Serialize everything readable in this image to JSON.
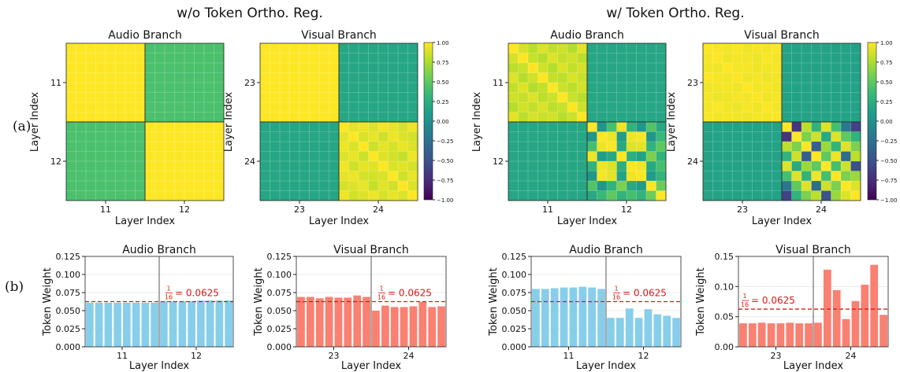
{
  "figure": {
    "left_heading": "w/o Token Ortho. Reg.",
    "right_heading": "w/ Token Ortho. Reg.",
    "row_a_label": "(a)",
    "row_b_label": "(b)"
  },
  "colors": {
    "bar_audio": "#87ceeb",
    "bar_visual": "#fa8072",
    "ref_line": "#e01818"
  },
  "chart_data": [
    {
      "id": "hm-a-wo",
      "type": "heatmap",
      "group": "without-reg",
      "title": "Audio Branch",
      "xlabel": "Layer Index",
      "ylabel": "Layer Index",
      "tick_labels": [
        "11",
        "12"
      ],
      "n": 16,
      "values": [
        1.0,
        0.42,
        1.0
      ],
      "colorbar": false
    },
    {
      "id": "hm-v-wo",
      "type": "heatmap",
      "group": "without-reg",
      "title": "Visual Branch",
      "xlabel": "Layer Index",
      "ylabel": "Layer Index",
      "tick_labels": [
        "23",
        "24"
      ],
      "n": 16,
      "values": [
        1.0,
        0.18,
        [
          [
            1.0,
            0.92,
            0.95,
            0.9,
            0.97,
            0.93,
            0.88,
            0.96
          ],
          [
            0.92,
            1.0,
            0.89,
            0.94,
            0.86,
            0.95,
            0.91,
            0.87
          ],
          [
            0.95,
            0.89,
            1.0,
            0.85,
            0.93,
            0.88,
            0.94,
            0.9
          ],
          [
            0.9,
            0.94,
            0.85,
            1.0,
            0.91,
            0.87,
            0.83,
            0.95
          ],
          [
            0.97,
            0.86,
            0.93,
            0.91,
            1.0,
            0.89,
            0.92,
            0.88
          ],
          [
            0.93,
            0.95,
            0.88,
            0.87,
            0.89,
            1.0,
            0.86,
            0.94
          ],
          [
            0.88,
            0.91,
            0.94,
            0.83,
            0.92,
            0.86,
            1.0,
            0.9
          ],
          [
            0.96,
            0.87,
            0.9,
            0.95,
            0.88,
            0.94,
            0.9,
            1.0
          ]
        ]
      ],
      "colorbar": true,
      "colorbar_ticks": [
        "1.00",
        "0.75",
        "0.50",
        "0.25",
        "0.00",
        "−0.25",
        "−0.50",
        "−0.75",
        "−1.00"
      ]
    },
    {
      "id": "hm-a-w",
      "type": "heatmap",
      "group": "with-reg",
      "title": "Audio Branch",
      "xlabel": "Layer Index",
      "ylabel": "Layer Index",
      "tick_labels": [
        "11",
        "12"
      ],
      "n": 16,
      "values": [
        [
          [
            1.0,
            0.88,
            0.8,
            0.9,
            0.82,
            0.86,
            0.78,
            0.92
          ],
          [
            0.88,
            1.0,
            0.84,
            0.79,
            0.91,
            0.83,
            0.87,
            0.8
          ],
          [
            0.8,
            0.84,
            1.0,
            0.86,
            0.78,
            0.9,
            0.82,
            0.88
          ],
          [
            0.9,
            0.79,
            0.86,
            1.0,
            0.83,
            0.8,
            0.89,
            0.84
          ],
          [
            0.82,
            0.91,
            0.78,
            0.83,
            1.0,
            0.85,
            0.8,
            0.87
          ],
          [
            0.86,
            0.83,
            0.9,
            0.8,
            0.85,
            1.0,
            0.84,
            0.79
          ],
          [
            0.78,
            0.87,
            0.82,
            0.89,
            0.8,
            0.84,
            1.0,
            0.85
          ],
          [
            0.92,
            0.8,
            0.88,
            0.84,
            0.87,
            0.79,
            0.85,
            1.0
          ]
        ],
        0.18,
        [
          [
            1.0,
            0.05,
            0.4,
            0.95,
            0.3,
            0.05,
            0.45,
            0.2
          ],
          [
            0.05,
            1.0,
            0.95,
            0.1,
            0.95,
            0.98,
            0.05,
            0.35
          ],
          [
            0.4,
            0.95,
            1.0,
            0.2,
            0.9,
            0.92,
            0.3,
            0.5
          ],
          [
            0.95,
            0.1,
            0.2,
            1.0,
            0.25,
            0.15,
            0.6,
            0.3
          ],
          [
            0.3,
            0.95,
            0.9,
            0.25,
            1.0,
            0.96,
            0.2,
            0.4
          ],
          [
            0.05,
            0.98,
            0.92,
            0.15,
            0.96,
            1.0,
            0.1,
            0.3
          ],
          [
            0.45,
            0.05,
            0.3,
            0.6,
            0.2,
            0.1,
            1.0,
            0.55
          ],
          [
            0.2,
            0.35,
            0.5,
            0.3,
            0.4,
            0.3,
            0.55,
            1.0
          ]
        ]
      ],
      "colorbar": false
    },
    {
      "id": "hm-v-w",
      "type": "heatmap",
      "group": "with-reg",
      "title": "Visual Branch",
      "xlabel": "Layer Index",
      "ylabel": "Layer Index",
      "tick_labels": [
        "23",
        "24"
      ],
      "n": 16,
      "values": [
        [
          [
            1.0,
            0.98,
            0.97,
            0.99,
            0.96,
            0.98,
            0.97,
            0.99
          ],
          [
            0.98,
            1.0,
            0.96,
            0.98,
            0.97,
            0.95,
            0.99,
            0.97
          ],
          [
            0.97,
            0.96,
            1.0,
            0.97,
            0.98,
            0.96,
            0.97,
            0.98
          ],
          [
            0.99,
            0.98,
            0.97,
            1.0,
            0.96,
            0.98,
            0.95,
            0.97
          ],
          [
            0.96,
            0.97,
            0.98,
            0.96,
            1.0,
            0.97,
            0.98,
            0.96
          ],
          [
            0.98,
            0.95,
            0.96,
            0.98,
            0.97,
            1.0,
            0.96,
            0.98
          ],
          [
            0.97,
            0.99,
            0.97,
            0.95,
            0.98,
            0.96,
            1.0,
            0.97
          ],
          [
            0.99,
            0.97,
            0.98,
            0.97,
            0.96,
            0.98,
            0.97,
            1.0
          ]
        ],
        0.15,
        [
          [
            1.0,
            -0.7,
            0.8,
            0.3,
            0.9,
            0.4,
            -0.2,
            -0.6
          ],
          [
            -0.7,
            1.0,
            0.6,
            0.85,
            0.2,
            0.9,
            0.5,
            0.3
          ],
          [
            0.8,
            0.6,
            1.0,
            -0.4,
            0.7,
            0.3,
            0.9,
            0.6
          ],
          [
            0.3,
            0.85,
            -0.4,
            1.0,
            0.5,
            0.95,
            -0.3,
            0.8
          ],
          [
            0.9,
            0.2,
            0.7,
            0.5,
            1.0,
            0.4,
            0.85,
            -0.5
          ],
          [
            0.4,
            0.9,
            0.3,
            0.95,
            0.4,
            1.0,
            0.6,
            0.7
          ],
          [
            -0.2,
            0.5,
            0.9,
            -0.3,
            0.85,
            0.6,
            1.0,
            0.9
          ],
          [
            -0.6,
            0.3,
            0.6,
            0.8,
            -0.5,
            0.7,
            0.9,
            1.0
          ]
        ]
      ],
      "colorbar": true,
      "colorbar_ticks": [
        "1.00",
        "0.75",
        "0.50",
        "0.25",
        "0.00",
        "−0.25",
        "−0.50",
        "−0.75",
        "−1.00"
      ]
    },
    {
      "id": "bar-a-wo",
      "type": "bar",
      "group": "without-reg",
      "title": "Audio Branch",
      "xlabel": "Layer Index",
      "ylabel": "Token Weight",
      "color": "audio",
      "ylim": [
        0,
        0.125
      ],
      "yticks": [
        "0.000",
        "0.025",
        "0.050",
        "0.075",
        "0.100",
        "0.125"
      ],
      "layer_labels": [
        "11",
        "12"
      ],
      "values": [
        0.061,
        0.061,
        0.061,
        0.061,
        0.061,
        0.061,
        0.061,
        0.061,
        0.063,
        0.063,
        0.063,
        0.063,
        0.064,
        0.064,
        0.064,
        0.064
      ],
      "reference": 0.0625,
      "ref_num": "1",
      "ref_den": "16",
      "ref_text": "= 0.0625",
      "ref_label_pos": "right"
    },
    {
      "id": "bar-v-wo",
      "type": "bar",
      "group": "without-reg",
      "title": "Visual Branch",
      "xlabel": "Layer Index",
      "ylabel": "Token Weight",
      "color": "visual",
      "ylim": [
        0,
        0.125
      ],
      "yticks": [
        "0.000",
        "0.025",
        "0.050",
        "0.075",
        "0.100",
        "0.125"
      ],
      "layer_labels": [
        "23",
        "24"
      ],
      "values": [
        0.069,
        0.069,
        0.067,
        0.069,
        0.068,
        0.068,
        0.071,
        0.069,
        0.05,
        0.057,
        0.055,
        0.055,
        0.056,
        0.062,
        0.055,
        0.056
      ],
      "reference": 0.0625,
      "ref_num": "1",
      "ref_den": "16",
      "ref_text": "= 0.0625",
      "ref_label_pos": "right"
    },
    {
      "id": "bar-a-w",
      "type": "bar",
      "group": "with-reg",
      "title": "Audio Branch",
      "xlabel": "Layer Index",
      "ylabel": "Token Weight",
      "color": "audio",
      "ylim": [
        0,
        0.125
      ],
      "yticks": [
        "0.000",
        "0.025",
        "0.050",
        "0.075",
        "0.100",
        "0.125"
      ],
      "layer_labels": [
        "11",
        "12"
      ],
      "values": [
        0.08,
        0.08,
        0.081,
        0.082,
        0.082,
        0.083,
        0.082,
        0.08,
        0.04,
        0.04,
        0.053,
        0.04,
        0.052,
        0.045,
        0.043,
        0.04
      ],
      "reference": 0.0625,
      "ref_num": "1",
      "ref_den": "16",
      "ref_text": "= 0.0625",
      "ref_label_pos": "right"
    },
    {
      "id": "bar-v-w",
      "type": "bar",
      "group": "with-reg",
      "title": "Visual Branch",
      "xlabel": "Layer Index",
      "ylabel": "Token Weight",
      "color": "visual",
      "ylim": [
        0,
        0.15
      ],
      "yticks": [
        "0.00",
        "0.05",
        "0.10",
        "0.15"
      ],
      "layer_labels": [
        "23",
        "24"
      ],
      "values": [
        0.039,
        0.039,
        0.04,
        0.039,
        0.039,
        0.04,
        0.039,
        0.039,
        0.04,
        0.128,
        0.094,
        0.046,
        0.076,
        0.103,
        0.136,
        0.053
      ],
      "reference": 0.0625,
      "ref_num": "1",
      "ref_den": "16",
      "ref_text": "= 0.0625",
      "ref_label_pos": "left"
    }
  ]
}
